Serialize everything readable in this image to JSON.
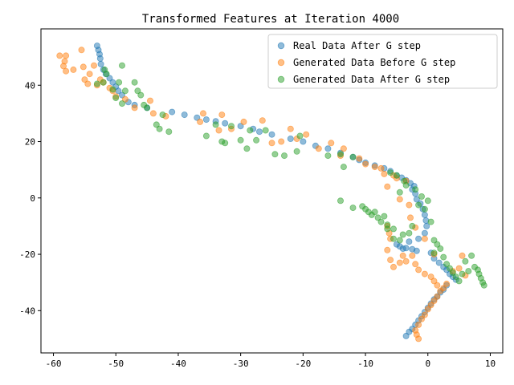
{
  "chart_data": {
    "type": "scatter",
    "title": "Transformed Features at Iteration 4000",
    "xlabel": "",
    "ylabel": "",
    "xlim": [
      -62,
      12
    ],
    "ylim": [
      -55,
      60
    ],
    "xticks": [
      -60,
      -50,
      -40,
      -30,
      -20,
      -10,
      0,
      10
    ],
    "yticks": [
      -40,
      -20,
      0,
      20,
      40
    ],
    "grid": false,
    "legend_position": "top-right",
    "series": [
      {
        "name": "Real Data After G step",
        "color": "#1f77b4",
        "points": [
          [
            -53,
            54
          ],
          [
            -52.8,
            52.5
          ],
          [
            -52.6,
            51
          ],
          [
            -52.5,
            49.5
          ],
          [
            -52.4,
            47.5
          ],
          [
            -52,
            45.5
          ],
          [
            -51.6,
            44
          ],
          [
            -51,
            42.5
          ],
          [
            -50.5,
            41
          ],
          [
            -50,
            39.5
          ],
          [
            -49.6,
            38
          ],
          [
            -49,
            36.5
          ],
          [
            -48,
            34
          ],
          [
            -47,
            33
          ],
          [
            -45,
            32
          ],
          [
            -41,
            30.5
          ],
          [
            -39,
            29.5
          ],
          [
            -37,
            28.5
          ],
          [
            -35.5,
            27.8
          ],
          [
            -34,
            27.2
          ],
          [
            -32.5,
            26.5
          ],
          [
            -30,
            25.5
          ],
          [
            -28,
            24.5
          ],
          [
            -27,
            23.5
          ],
          [
            -25,
            22.5
          ],
          [
            -22,
            21
          ],
          [
            -20,
            20
          ],
          [
            -18,
            18.5
          ],
          [
            -16,
            17.5
          ],
          [
            -14,
            16
          ],
          [
            -12,
            14.5
          ],
          [
            -11,
            13.5
          ],
          [
            -10,
            12.5
          ],
          [
            -8.5,
            11.5
          ],
          [
            -7,
            10.5
          ],
          [
            -6,
            9.5
          ],
          [
            -5,
            8
          ],
          [
            -4.2,
            7.2
          ],
          [
            -3.5,
            6.3
          ],
          [
            -2.8,
            5.2
          ],
          [
            -2.2,
            4.2
          ],
          [
            -2.5,
            3
          ],
          [
            -2,
            1.5
          ],
          [
            -1.8,
            -0.5
          ],
          [
            -1.2,
            -2
          ],
          [
            -0.8,
            -4
          ],
          [
            -0.5,
            -6
          ],
          [
            -0.3,
            -8
          ],
          [
            -0.2,
            -10
          ],
          [
            -0.5,
            -12.5
          ],
          [
            -1.5,
            -14.5
          ],
          [
            -3,
            -15.5
          ],
          [
            -5,
            -16.5
          ],
          [
            -4.5,
            -17.2
          ],
          [
            -3.5,
            -17.8
          ],
          [
            -2.5,
            -18.2
          ],
          [
            -1.8,
            -18.8
          ],
          [
            -4,
            -18
          ],
          [
            0.5,
            -19.5
          ],
          [
            1,
            -21.5
          ],
          [
            1.8,
            -23
          ],
          [
            2.5,
            -24.5
          ],
          [
            3,
            -25.5
          ],
          [
            3.5,
            -27
          ],
          [
            4,
            -28
          ],
          [
            4.5,
            -29
          ],
          [
            3,
            -31
          ],
          [
            2.5,
            -32.5
          ],
          [
            2,
            -33.5
          ],
          [
            1.5,
            -35
          ],
          [
            1,
            -36
          ],
          [
            0.5,
            -37.5
          ],
          [
            0,
            -39
          ],
          [
            -0.5,
            -40.5
          ],
          [
            -1,
            -42
          ],
          [
            -1.5,
            -43.5
          ],
          [
            -2,
            -45
          ],
          [
            -2.5,
            -46.5
          ],
          [
            -3,
            -47.5
          ],
          [
            -3.5,
            -49
          ]
        ]
      },
      {
        "name": "Generated Data Before G step",
        "color": "#ff7f0e",
        "points": [
          [
            -59,
            50.5
          ],
          [
            -58,
            50.5
          ],
          [
            -58.2,
            48.5
          ],
          [
            -58.4,
            46.8
          ],
          [
            -58,
            45
          ],
          [
            -56.8,
            45.5
          ],
          [
            -55.5,
            52.5
          ],
          [
            -55.2,
            46.5
          ],
          [
            -55,
            42
          ],
          [
            -54.5,
            40.5
          ],
          [
            -54.2,
            44
          ],
          [
            -53.5,
            47
          ],
          [
            -53,
            40
          ],
          [
            -52.5,
            42
          ],
          [
            -52,
            41
          ],
          [
            -51,
            39
          ],
          [
            -50.5,
            38
          ],
          [
            -50,
            36
          ],
          [
            -48.5,
            35
          ],
          [
            -47,
            32
          ],
          [
            -44.5,
            34.5
          ],
          [
            -44,
            30
          ],
          [
            -42,
            29
          ],
          [
            -36.5,
            27
          ],
          [
            -36,
            30
          ],
          [
            -33.5,
            24
          ],
          [
            -33,
            29.5
          ],
          [
            -31.5,
            24.5
          ],
          [
            -29.5,
            27
          ],
          [
            -26.5,
            27.5
          ],
          [
            -25,
            19.5
          ],
          [
            -23.5,
            20
          ],
          [
            -22,
            24.5
          ],
          [
            -21,
            21
          ],
          [
            -19.5,
            22.5
          ],
          [
            -17.5,
            17.5
          ],
          [
            -15.5,
            19.5
          ],
          [
            -14,
            15
          ],
          [
            -13.5,
            17.5
          ],
          [
            -11,
            14
          ],
          [
            -10,
            12
          ],
          [
            -8.5,
            11
          ],
          [
            -7.5,
            10.5
          ],
          [
            -7,
            8.5
          ],
          [
            -6.5,
            4
          ],
          [
            -5.5,
            8
          ],
          [
            -5,
            7
          ],
          [
            -4.5,
            -0.5
          ],
          [
            -3.5,
            6
          ],
          [
            -3,
            -2.5
          ],
          [
            -2.8,
            -7
          ],
          [
            -2,
            -10.5
          ],
          [
            -6.5,
            -10
          ],
          [
            -6.2,
            -12.5
          ],
          [
            -6,
            -14.5
          ],
          [
            -6.5,
            -18.5
          ],
          [
            -6,
            -22
          ],
          [
            -5.5,
            -24.5
          ],
          [
            -4.5,
            -23
          ],
          [
            -4,
            -20.5
          ],
          [
            -3.5,
            -22.5
          ],
          [
            -2.5,
            -20.5
          ],
          [
            -2,
            -23.5
          ],
          [
            -1.5,
            -25.5
          ],
          [
            -0.5,
            -27
          ],
          [
            0.5,
            -28
          ],
          [
            1,
            -29.5
          ],
          [
            1.5,
            -31
          ],
          [
            2,
            -33
          ],
          [
            1.5,
            -35
          ],
          [
            1,
            -36.5
          ],
          [
            0.5,
            -38
          ],
          [
            0,
            -39.5
          ],
          [
            -0.5,
            -41.5
          ],
          [
            -1,
            -43
          ],
          [
            -1.5,
            -45
          ],
          [
            -2,
            -47
          ],
          [
            -1.8,
            -48.5
          ],
          [
            -1.5,
            -50
          ],
          [
            2.5,
            -32
          ],
          [
            3,
            -30.5
          ],
          [
            4,
            -26
          ],
          [
            5,
            -25
          ],
          [
            6,
            -27.5
          ],
          [
            5.5,
            -20.5
          ],
          [
            1,
            -20
          ],
          [
            -0.5,
            -14.5
          ]
        ]
      },
      {
        "name": "Generated Data After G step",
        "color": "#2ca02c",
        "points": [
          [
            -53,
            40.5
          ],
          [
            -52,
            41
          ],
          [
            -51.5,
            44
          ],
          [
            -51.8,
            45.5
          ],
          [
            -50.5,
            38.5
          ],
          [
            -50,
            35.5
          ],
          [
            -49.5,
            41
          ],
          [
            -49,
            47
          ],
          [
            -49,
            33.5
          ],
          [
            -48.5,
            38
          ],
          [
            -47,
            41
          ],
          [
            -46.5,
            38
          ],
          [
            -46,
            36.5
          ],
          [
            -45.5,
            33
          ],
          [
            -45,
            32
          ],
          [
            -43.5,
            26
          ],
          [
            -43,
            24.5
          ],
          [
            -42.5,
            29.5
          ],
          [
            -41.5,
            23.5
          ],
          [
            -35.5,
            22
          ],
          [
            -34,
            26
          ],
          [
            -33,
            20
          ],
          [
            -32.5,
            19.5
          ],
          [
            -31.5,
            25.5
          ],
          [
            -30,
            20.5
          ],
          [
            -29,
            17.5
          ],
          [
            -28.5,
            24
          ],
          [
            -27.5,
            20.5
          ],
          [
            -26,
            24
          ],
          [
            -24.5,
            15.5
          ],
          [
            -23,
            15
          ],
          [
            -21,
            16.5
          ],
          [
            -20.5,
            22
          ],
          [
            -16,
            15
          ],
          [
            -14,
            15.5
          ],
          [
            -14,
            -1
          ],
          [
            -13.5,
            11
          ],
          [
            -12,
            14.5
          ],
          [
            -12,
            -3.5
          ],
          [
            -10.5,
            -3
          ],
          [
            -10,
            -4
          ],
          [
            -9.5,
            -5
          ],
          [
            -9,
            -6
          ],
          [
            -8.5,
            -5
          ],
          [
            -8,
            -7
          ],
          [
            -7.5,
            -8.5
          ],
          [
            -7,
            -6.5
          ],
          [
            -6.5,
            -9.5
          ],
          [
            -6,
            9
          ],
          [
            -5.5,
            -11
          ],
          [
            -5,
            8
          ],
          [
            -4.5,
            2
          ],
          [
            -4,
            -13
          ],
          [
            -3.8,
            6
          ],
          [
            -3.5,
            4.5
          ],
          [
            -3,
            -12.5
          ],
          [
            -2.5,
            -10
          ],
          [
            -2,
            3
          ],
          [
            -1.5,
            -2.5
          ],
          [
            -1,
            0.5
          ],
          [
            -0.5,
            -4
          ],
          [
            0,
            -1
          ],
          [
            0.5,
            -8.5
          ],
          [
            1,
            -15
          ],
          [
            1.5,
            -16.5
          ],
          [
            1,
            -19.5
          ],
          [
            2,
            -18
          ],
          [
            2.5,
            -21
          ],
          [
            3,
            -23.5
          ],
          [
            3.5,
            -25
          ],
          [
            4,
            -26.5
          ],
          [
            4.5,
            -28
          ],
          [
            5,
            -29.5
          ],
          [
            5.5,
            -27
          ],
          [
            6,
            -22.5
          ],
          [
            6.5,
            -26
          ],
          [
            7,
            -20.5
          ],
          [
            7.5,
            -24.5
          ],
          [
            8,
            -25.5
          ],
          [
            8.2,
            -27
          ],
          [
            8.5,
            -28.5
          ],
          [
            8.8,
            -30
          ],
          [
            9,
            -31
          ],
          [
            -6.5,
            -11
          ],
          [
            -5.5,
            -14.5
          ],
          [
            -4.5,
            -15
          ]
        ]
      }
    ]
  }
}
